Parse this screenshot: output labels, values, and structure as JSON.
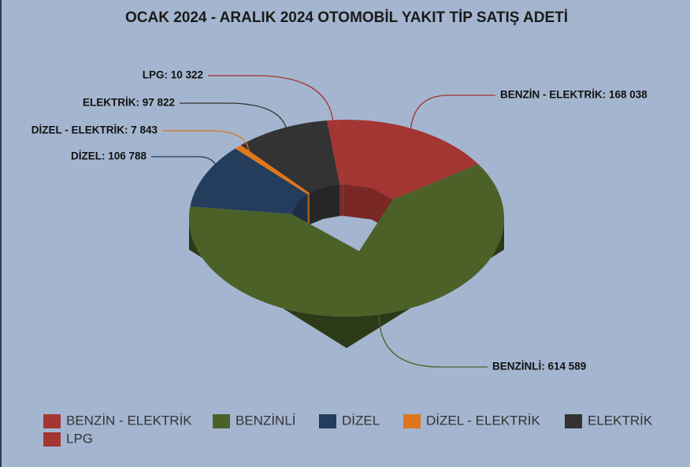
{
  "chart_data": {
    "type": "donut3d",
    "title": "OCAK 2024 - ARALIK 2024 OTOMOBİL YAKIT TİP SATIŞ ADETİ",
    "categories": [
      "BENZİN - ELEKTRİK",
      "BENZİNLİ",
      "DİZEL",
      "DİZEL - ELEKTRİK",
      "ELEKTRİK",
      "LPG"
    ],
    "values": [
      168038,
      614589,
      106788,
      7843,
      97822,
      10322
    ],
    "value_labels": [
      "BENZİN - ELEKTRİK: 168 038",
      "BENZİNLİ: 614 589",
      "DİZEL: 106 788",
      "DİZEL - ELEKTRİK: 7 843",
      "ELEKTRİK: 97 822",
      "LPG: 10 322"
    ],
    "colors": [
      "#a33532",
      "#4b6128",
      "#243d5c",
      "#e0761c",
      "#333333",
      "#a33532"
    ],
    "legend": "bottom"
  }
}
